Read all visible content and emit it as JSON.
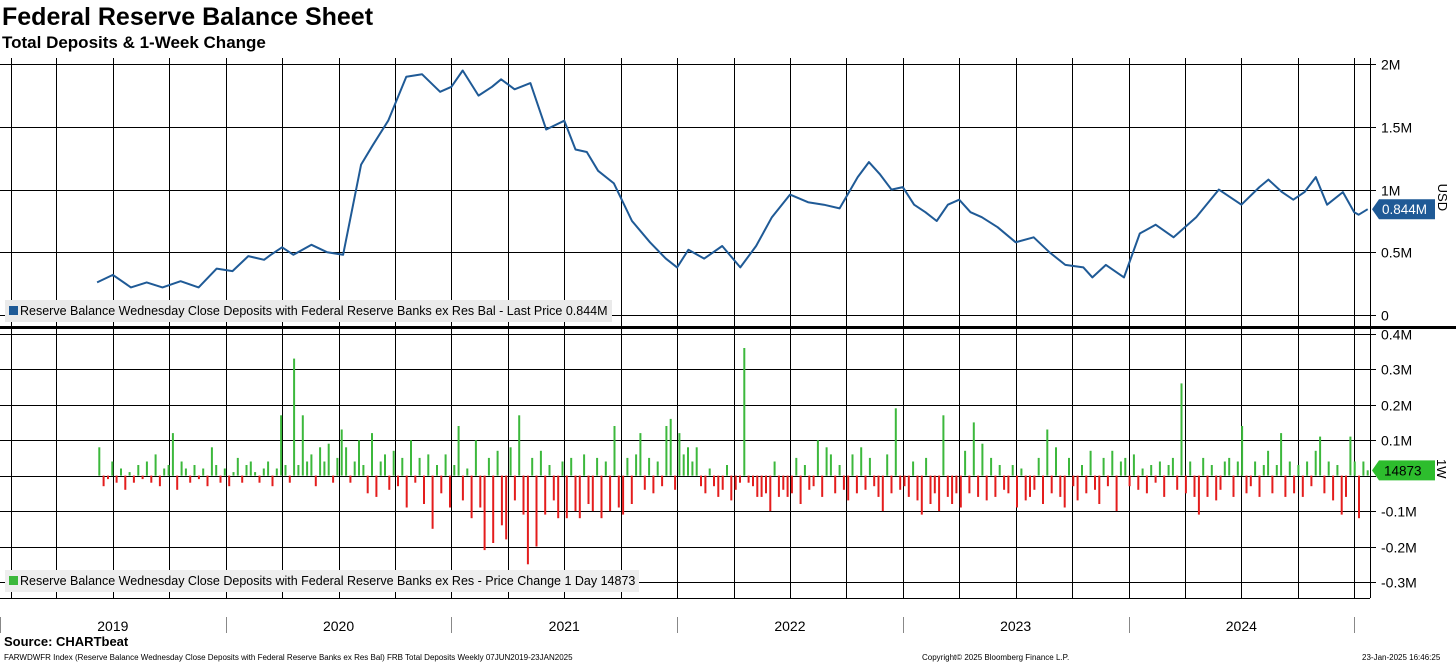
{
  "header": {
    "title": "Federal Reserve Balance Sheet",
    "subtitle": "Total Deposits & 1-Week Change"
  },
  "colors": {
    "line": "#1f5a96",
    "positive_bar": "#3cb83c",
    "negative_bar": "#e41d1d",
    "grid": "#000000",
    "tag_top": "#1f5a96",
    "tag_bottom": "#2dbd2d"
  },
  "chart_data": [
    {
      "type": "line",
      "name": "Reserve Balance Wednesday Close Deposits with Federal Reserve Banks ex Res Bal",
      "title": "Federal Reserve Balance Sheet",
      "subtitle": "Total Deposits & 1-Week Change",
      "ylabel": "USD",
      "unit": "M (USD)",
      "ylim": [
        0,
        2.05
      ],
      "yticks": [
        0,
        0.5,
        1,
        1.5,
        2
      ],
      "ytick_labels": [
        "0",
        "0.5M",
        "1M",
        "1.5M",
        "2M"
      ],
      "x_range": [
        2019.0,
        2025.07
      ],
      "grid": true,
      "last_value_label": "0.844M",
      "legend": "Reserve Balance Wednesday Close Deposits with Federal Reserve Banks ex Res Bal - Last Price 0.844M",
      "x": [
        2019.43,
        2019.5,
        2019.58,
        2019.65,
        2019.72,
        2019.8,
        2019.88,
        2019.96,
        2020.03,
        2020.1,
        2020.17,
        2020.2,
        2020.25,
        2020.3,
        2020.38,
        2020.45,
        2020.52,
        2020.6,
        2020.65,
        2020.72,
        2020.8,
        2020.87,
        2020.95,
        2021.0,
        2021.05,
        2021.12,
        2021.18,
        2021.22,
        2021.28,
        2021.35,
        2021.42,
        2021.5,
        2021.55,
        2021.6,
        2021.65,
        2021.72,
        2021.8,
        2021.88,
        2021.95,
        2022.0,
        2022.05,
        2022.12,
        2022.2,
        2022.28,
        2022.35,
        2022.42,
        2022.5,
        2022.58,
        2022.65,
        2022.72,
        2022.8,
        2022.85,
        2022.9,
        2022.95,
        2023.0,
        2023.05,
        2023.1,
        2023.15,
        2023.2,
        2023.25,
        2023.3,
        2023.35,
        2023.42,
        2023.5,
        2023.58,
        2023.65,
        2023.72,
        2023.8,
        2023.84,
        2023.9,
        2023.98,
        2024.05,
        2024.12,
        2024.2,
        2024.3,
        2024.4,
        2024.5,
        2024.58,
        2024.62,
        2024.68,
        2024.73,
        2024.78,
        2024.83,
        2024.88,
        2024.95,
        2025.0,
        2025.02,
        2025.06
      ],
      "y": [
        0.26,
        0.32,
        0.22,
        0.26,
        0.22,
        0.27,
        0.22,
        0.37,
        0.35,
        0.47,
        0.44,
        0.48,
        0.54,
        0.48,
        0.56,
        0.5,
        0.48,
        1.2,
        1.35,
        1.55,
        1.9,
        1.92,
        1.78,
        1.82,
        1.95,
        1.75,
        1.82,
        1.88,
        1.8,
        1.85,
        1.48,
        1.55,
        1.32,
        1.3,
        1.15,
        1.05,
        0.75,
        0.58,
        0.45,
        0.38,
        0.52,
        0.45,
        0.55,
        0.38,
        0.55,
        0.78,
        0.96,
        0.9,
        0.88,
        0.85,
        1.1,
        1.22,
        1.12,
        1.0,
        1.02,
        0.88,
        0.82,
        0.75,
        0.88,
        0.92,
        0.82,
        0.78,
        0.7,
        0.58,
        0.62,
        0.5,
        0.4,
        0.38,
        0.3,
        0.4,
        0.3,
        0.65,
        0.72,
        0.62,
        0.78,
        1.0,
        0.88,
        1.02,
        1.08,
        0.98,
        0.92,
        0.98,
        1.1,
        0.88,
        0.98,
        0.82,
        0.8,
        0.844
      ]
    },
    {
      "type": "bar",
      "name": "Reserve Balance Wednesday Close Deposits with Federal Reserve Banks ex Res - Price Change 1 Day",
      "ylabel": "1W",
      "unit": "M (USD)",
      "ylim": [
        -0.345,
        0.405
      ],
      "yticks": [
        -0.3,
        -0.2,
        -0.1,
        0.0,
        0.1,
        0.2,
        0.3,
        0.4
      ],
      "ytick_labels": [
        "-0.3M",
        "-0.2M",
        "-0.1M",
        "",
        "0.1M",
        "0.2M",
        "0.3M",
        "0.4M"
      ],
      "x_range": [
        2019.0,
        2025.07
      ],
      "grid": true,
      "last_value_label": "14873",
      "legend": "Reserve Balance Wednesday Close Deposits with Federal Reserve Banks ex Res - Price Change 1 Day 14873",
      "x_start": 2019.44,
      "x_step": 0.01918,
      "values": [
        0.08,
        -0.03,
        -0.01,
        0.04,
        -0.02,
        0.02,
        -0.04,
        0.01,
        -0.02,
        0.03,
        -0.01,
        0.04,
        -0.02,
        0.06,
        -0.03,
        0.02,
        0.03,
        0.12,
        -0.04,
        0.04,
        0.02,
        -0.02,
        0.03,
        -0.01,
        0.02,
        -0.03,
        0.08,
        0.03,
        -0.02,
        0.02,
        -0.03,
        0.01,
        0.05,
        -0.02,
        0.03,
        0.04,
        0.01,
        -0.02,
        0.02,
        0.04,
        -0.03,
        0.02,
        0.17,
        0.03,
        -0.02,
        0.33,
        0.03,
        0.17,
        0.04,
        0.06,
        -0.03,
        0.08,
        0.04,
        0.09,
        -0.02,
        0.05,
        0.13,
        0.08,
        -0.02,
        0.04,
        0.1,
        0.03,
        -0.05,
        0.12,
        -0.06,
        0.04,
        0.06,
        -0.04,
        0.07,
        -0.03,
        0.05,
        -0.09,
        0.1,
        -0.02,
        0.05,
        -0.08,
        0.06,
        -0.15,
        0.03,
        -0.05,
        0.06,
        -0.09,
        0.03,
        0.14,
        -0.07,
        0.02,
        -0.12,
        0.1,
        -0.09,
        -0.21,
        0.05,
        -0.19,
        0.07,
        -0.14,
        -0.18,
        0.08,
        -0.07,
        0.17,
        -0.11,
        -0.25,
        0.05,
        -0.2,
        0.07,
        -0.11,
        0.03,
        -0.07,
        -0.12,
        0.04,
        -0.12,
        0.05,
        -0.1,
        -0.12,
        0.06,
        -0.08,
        -0.1,
        0.05,
        -0.12,
        0.04,
        -0.1,
        0.14,
        -0.09,
        -0.11,
        0.05,
        -0.08,
        0.06,
        0.12,
        -0.04,
        0.05,
        -0.05,
        0.04,
        -0.03,
        0.14,
        0.16,
        -0.04,
        0.12,
        0.06,
        0.08,
        0.04,
        0.08,
        -0.03,
        -0.05,
        0.02,
        -0.03,
        -0.06,
        -0.04,
        0.03,
        -0.07,
        -0.04,
        -0.02,
        0.36,
        -0.02,
        -0.03,
        -0.06,
        -0.06,
        -0.05,
        -0.1,
        0.04,
        -0.06,
        -0.04,
        -0.06,
        -0.05,
        0.05,
        -0.08,
        0.03,
        -0.04,
        -0.03,
        0.1,
        -0.06,
        0.08,
        0.06,
        -0.05,
        0.03,
        -0.04,
        -0.07,
        0.06,
        -0.05,
        0.08,
        -0.04,
        0.05,
        -0.03,
        -0.06,
        -0.1,
        0.06,
        -0.05,
        0.19,
        -0.04,
        -0.03,
        -0.06,
        0.04,
        -0.07,
        -0.11,
        0.05,
        -0.08,
        -0.05,
        -0.1,
        0.17,
        -0.06,
        -0.08,
        -0.05,
        -0.09,
        0.07,
        -0.05,
        0.15,
        -0.06,
        0.09,
        -0.07,
        0.05,
        -0.06,
        0.03,
        -0.04,
        -0.05,
        0.03,
        -0.09,
        0.02,
        -0.07,
        -0.06,
        -0.04,
        0.05,
        -0.08,
        0.13,
        -0.05,
        0.08,
        -0.06,
        -0.09,
        0.05,
        -0.03,
        -0.07,
        0.03,
        -0.05,
        0.07,
        -0.04,
        -0.08,
        0.05,
        -0.03,
        0.07,
        -0.1,
        0.04,
        0.05,
        -0.03,
        0.06,
        -0.04,
        0.02,
        -0.05,
        0.03,
        -0.02,
        0.04,
        -0.06,
        0.03,
        0.05,
        -0.04,
        0.26,
        -0.05,
        0.04,
        -0.06,
        -0.11,
        0.05,
        -0.06,
        0.03,
        -0.07,
        -0.04,
        0.04,
        0.05,
        -0.06,
        0.04,
        0.14,
        -0.05,
        -0.03,
        0.04,
        -0.06,
        0.03,
        0.07,
        -0.05,
        0.03,
        0.12,
        -0.06,
        0.04,
        -0.05,
        0.03,
        -0.06,
        0.04,
        -0.03,
        0.07,
        0.11,
        -0.05,
        0.04,
        -0.07,
        0.03,
        -0.11,
        -0.06,
        0.11,
        0.04,
        -0.12,
        0.04,
        0.015
      ]
    }
  ],
  "x_axis": {
    "years": [
      "2019",
      "2020",
      "2021",
      "2022",
      "2023",
      "2024"
    ]
  },
  "footer": {
    "source": "Source: CHARTbeat",
    "index_description": "FARWDWFR Index (Reserve Balance Wednesday Close Deposits with Federal Reserve Banks ex Res Bal) FRB Total Deposits  Weekly 07JUN2019-23JAN2025",
    "copyright": "Copyright© 2025 Bloomberg Finance L.P.",
    "timestamp": "23-Jan-2025 16:46:25"
  }
}
